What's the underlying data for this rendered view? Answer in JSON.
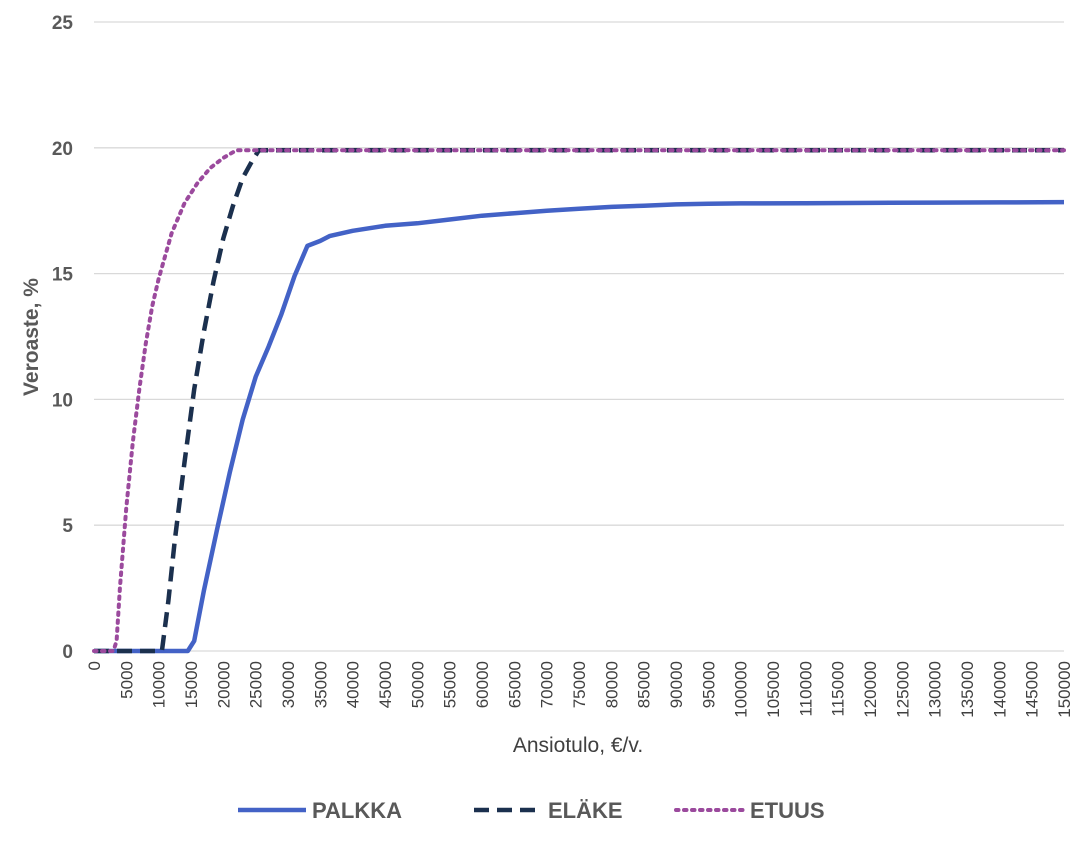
{
  "chart_data": {
    "type": "line",
    "xlabel": "Ansiotulo, €/v.",
    "ylabel": "Veroaste, %",
    "xlim": [
      0,
      150000
    ],
    "ylim": [
      0,
      25
    ],
    "yticks": [
      0,
      5,
      10,
      15,
      20,
      25
    ],
    "xticks": [
      "0",
      "5000",
      "10000",
      "15000",
      "20000",
      "25000",
      "30000",
      "35000",
      "40000",
      "45000",
      "50000",
      "55000",
      "60000",
      "65000",
      "70000",
      "75000",
      "80000",
      "85000",
      "90000",
      "95000",
      "100000",
      "105000",
      "110000",
      "115000",
      "120000",
      "125000",
      "130000",
      "135000",
      "140000",
      "145000",
      "150000"
    ],
    "grid": "horizontal",
    "legend_position": "bottom",
    "series": [
      {
        "name": "PALKKA",
        "color": "#4362c6",
        "style": "solid",
        "x": [
          0,
          5000,
          10000,
          14500,
          15500,
          17000,
          19000,
          21000,
          23000,
          25000,
          27000,
          29000,
          31000,
          33000,
          35000,
          36500,
          40000,
          45000,
          50000,
          55000,
          60000,
          65000,
          70000,
          75000,
          80000,
          85000,
          90000,
          95000,
          100000,
          110000,
          120000,
          130000,
          140000,
          150000
        ],
        "values": [
          0,
          0,
          0,
          0,
          0.4,
          2.4,
          4.8,
          7.1,
          9.2,
          10.9,
          12.1,
          13.4,
          14.9,
          16.1,
          16.3,
          16.5,
          16.7,
          16.9,
          17.0,
          17.15,
          17.3,
          17.4,
          17.5,
          17.58,
          17.65,
          17.7,
          17.75,
          17.78,
          17.79,
          17.8,
          17.81,
          17.82,
          17.83,
          17.84
        ]
      },
      {
        "name": "ELÄKE",
        "color": "#1b304e",
        "style": "dashed",
        "x": [
          0,
          5000,
          10500,
          11500,
          12500,
          14000,
          15500,
          17000,
          18500,
          20000,
          21500,
          23000,
          24500,
          25500,
          26500,
          30000,
          50000,
          100000,
          150000
        ],
        "values": [
          0,
          0,
          0,
          2.0,
          4.4,
          7.5,
          10.4,
          12.7,
          14.7,
          16.4,
          17.7,
          18.8,
          19.5,
          19.9,
          19.9,
          19.9,
          19.9,
          19.9,
          19.9
        ]
      },
      {
        "name": "ETUUS",
        "color": "#9b4a9d",
        "style": "dotted",
        "x": [
          0,
          3000,
          3500,
          4000,
          5000,
          6000,
          7000,
          8000,
          9000,
          10000,
          12000,
          14000,
          16000,
          18000,
          20000,
          22000,
          24000,
          26000,
          50000,
          100000,
          150000
        ],
        "values": [
          0,
          0,
          0.4,
          2.5,
          5.7,
          8.3,
          10.4,
          12.2,
          13.7,
          14.8,
          16.6,
          17.8,
          18.6,
          19.2,
          19.6,
          19.9,
          19.9,
          19.9,
          19.9,
          19.9,
          19.9
        ]
      }
    ]
  }
}
